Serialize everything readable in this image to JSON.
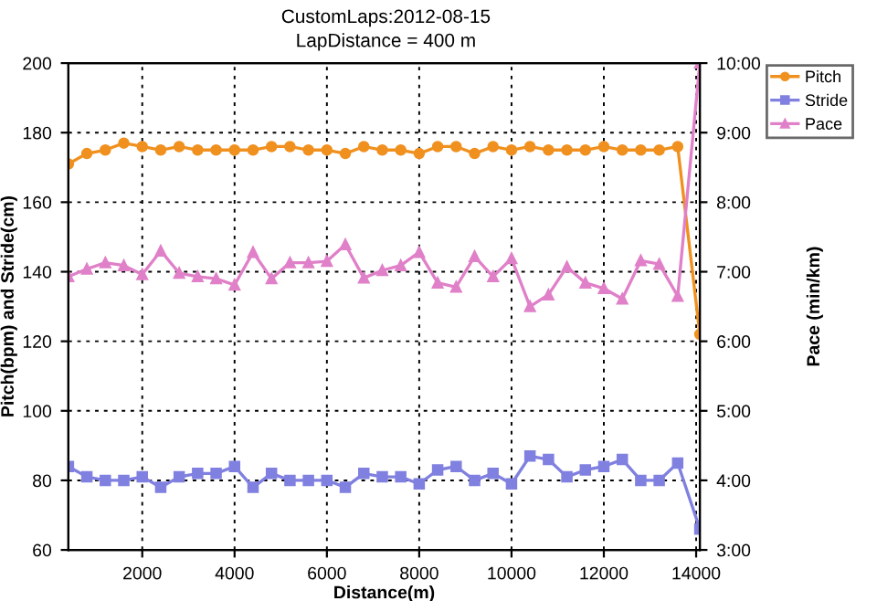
{
  "chart_data": {
    "type": "line",
    "title": "CustomLaps:2012-08-15",
    "subtitle": "LapDistance = 400 m",
    "xlabel": "Distance(m)",
    "ylabel": "Pitch(bpm) and Stride(cm)",
    "y2label": "Pace (min/km)",
    "x": [
      400,
      800,
      1200,
      1600,
      2000,
      2400,
      2800,
      3200,
      3600,
      4000,
      4400,
      4800,
      5200,
      5600,
      6000,
      6400,
      6800,
      7200,
      7600,
      8000,
      8400,
      8800,
      9200,
      9600,
      10000,
      10400,
      10800,
      11200,
      11600,
      12000,
      12400,
      12800,
      13200,
      13600,
      14080
    ],
    "series": [
      {
        "name": "Pitch",
        "color": "#f0901e",
        "marker": "circle",
        "values": [
          171,
          174,
          175,
          177,
          176,
          175,
          176,
          175,
          175,
          175,
          175,
          176,
          176,
          175,
          175,
          174,
          176,
          175,
          175,
          174,
          176,
          176,
          174,
          176,
          175,
          176,
          175,
          175,
          175,
          176,
          175,
          175,
          175,
          176,
          122
        ]
      },
      {
        "name": "Stride",
        "color": "#8080e0",
        "marker": "square",
        "values": [
          84,
          81,
          80,
          80,
          81,
          78,
          81,
          82,
          82,
          84,
          78,
          82,
          80,
          80,
          80,
          78,
          82,
          81,
          81,
          79,
          83,
          84,
          80,
          82,
          79,
          87,
          86,
          81,
          83,
          84,
          86,
          80,
          80,
          85,
          66
        ]
      },
      {
        "name": "Pace",
        "color": "#e080c8",
        "marker": "triangle",
        "axis": "y2",
        "values": [
          6.93,
          7.04,
          7.13,
          7.09,
          6.96,
          7.3,
          6.98,
          6.93,
          6.9,
          6.81,
          7.28,
          6.9,
          7.13,
          7.13,
          7.15,
          7.39,
          6.91,
          7.02,
          7.09,
          7.28,
          6.84,
          6.78,
          7.22,
          6.93,
          7.19,
          6.5,
          6.67,
          7.07,
          6.84,
          6.76,
          6.61,
          7.16,
          7.11,
          6.65,
          10.0
        ]
      }
    ],
    "xlim": [
      400,
      14080
    ],
    "xticks": [
      2000,
      4000,
      6000,
      8000,
      10000,
      12000,
      14000
    ],
    "ylim": [
      60,
      200
    ],
    "yticks": [
      60,
      80,
      100,
      120,
      140,
      160,
      180,
      200
    ],
    "y2lim": [
      3,
      10
    ],
    "y2ticks": [
      {
        "value": 3,
        "label": "3:00"
      },
      {
        "value": 4,
        "label": "4:00"
      },
      {
        "value": 5,
        "label": "5:00"
      },
      {
        "value": 6,
        "label": "6:00"
      },
      {
        "value": 7,
        "label": "7:00"
      },
      {
        "value": 8,
        "label": "8:00"
      },
      {
        "value": 9,
        "label": "9:00"
      },
      {
        "value": 10,
        "label": "10:00"
      }
    ],
    "grid": true,
    "legend": "top right",
    "line_style": "solid"
  }
}
